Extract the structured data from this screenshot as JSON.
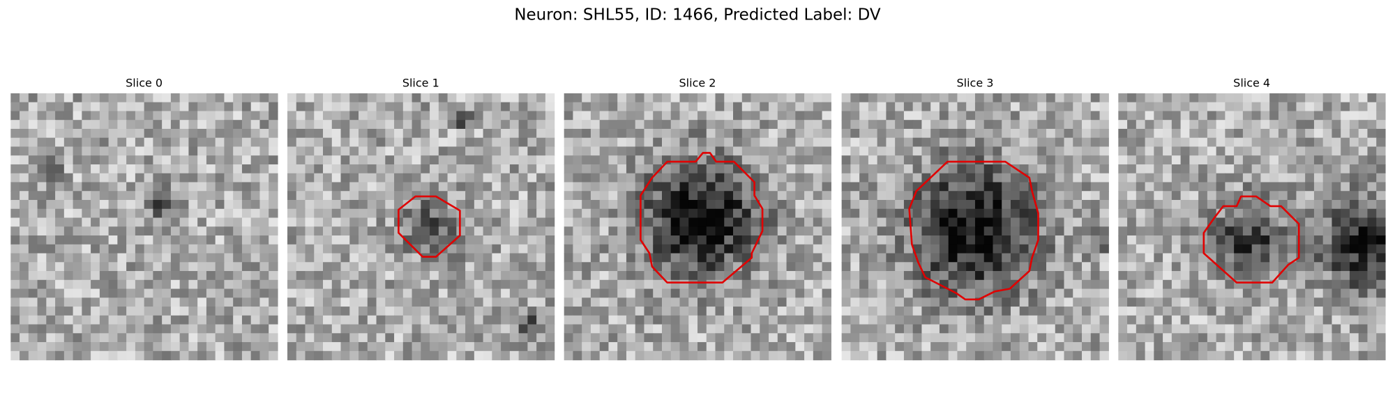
{
  "title": "Neuron: SHL55, ID: 1466, Predicted Label: DV",
  "panels": [
    {
      "title": "Slice 0"
    },
    {
      "title": "Slice 1"
    },
    {
      "title": "Slice 2"
    },
    {
      "title": "Slice 3"
    },
    {
      "title": "Slice 4"
    }
  ]
}
